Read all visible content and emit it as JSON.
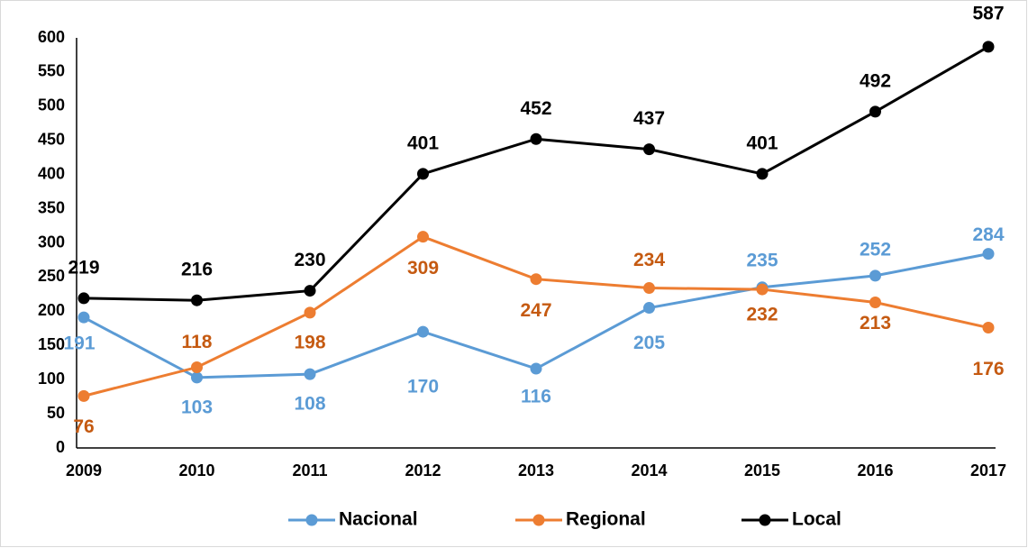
{
  "chart_data": {
    "type": "line",
    "categories": [
      "2009",
      "2010",
      "2011",
      "2012",
      "2013",
      "2014",
      "2015",
      "2016",
      "2017"
    ],
    "series": [
      {
        "name": "Nacional",
        "color": "#5b9bd5",
        "values": [
          191,
          103,
          108,
          170,
          116,
          205,
          235,
          252,
          284
        ]
      },
      {
        "name": "Regional",
        "color": "#ed7d31",
        "values": [
          76,
          118,
          198,
          309,
          247,
          234,
          232,
          213,
          176
        ]
      },
      {
        "name": "Local",
        "color": "#000000",
        "values": [
          219,
          216,
          230,
          401,
          452,
          437,
          401,
          492,
          587
        ]
      }
    ],
    "ylim": [
      0,
      600
    ],
    "yticks": [
      0,
      50,
      100,
      150,
      200,
      250,
      300,
      350,
      400,
      450,
      500,
      550,
      600
    ],
    "grid": false,
    "legend": "bottom"
  }
}
